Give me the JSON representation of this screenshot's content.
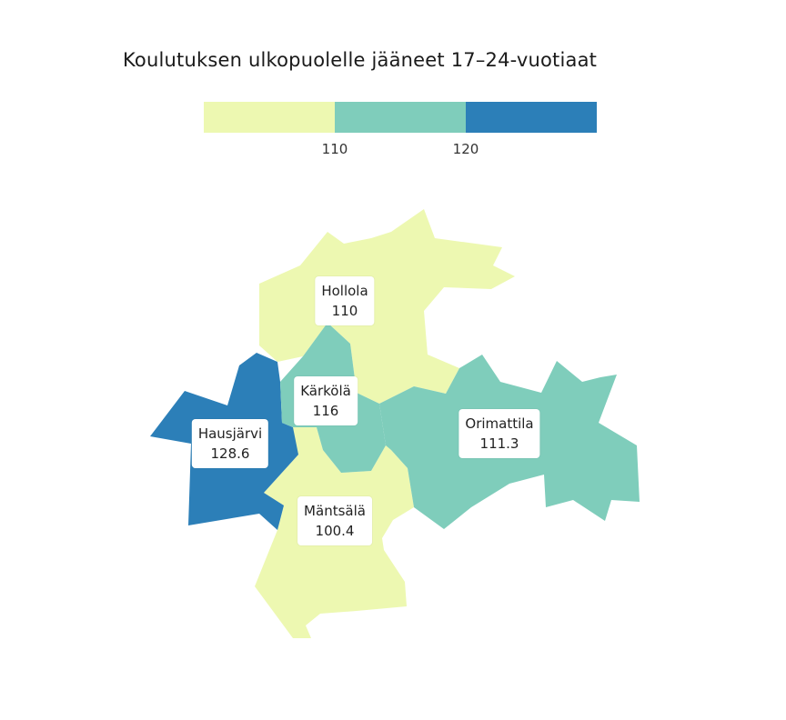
{
  "title": "Koulutuksen ulkopuolelle jääneet 17–24-vuotiaat",
  "legend": {
    "colors": [
      "#edf8b1",
      "#7fcdbb",
      "#2c7fb8"
    ],
    "breaks": [
      "110",
      "120"
    ]
  },
  "regions": [
    {
      "name": "Hollola",
      "value": "110",
      "color": "#edf8b1"
    },
    {
      "name": "Kärkölä",
      "value": "116",
      "color": "#7fcdbb"
    },
    {
      "name": "Hausjärvi",
      "value": "128.6",
      "color": "#2c7fb8"
    },
    {
      "name": "Orimattila",
      "value": "111.3",
      "color": "#7fcdbb"
    },
    {
      "name": "Mäntsälä",
      "value": "100.4",
      "color": "#edf8b1"
    }
  ]
}
